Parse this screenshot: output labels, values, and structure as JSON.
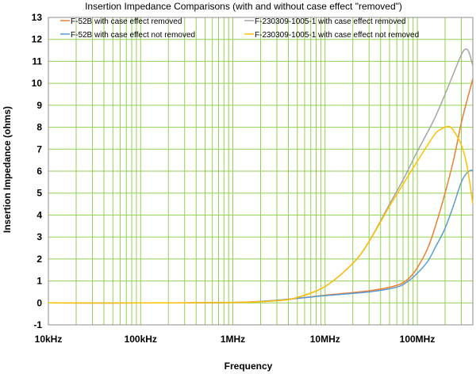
{
  "chart_data": {
    "type": "line",
    "title": "Insertion Impedance Comparisons (with and without case effect \"removed\")",
    "xlabel": "Frequency",
    "ylabel": "Insertion Impedance (ohms)",
    "x_scale": "log",
    "xlim": [
      10000,
      400000000
    ],
    "ylim": [
      -1,
      13
    ],
    "x_ticks": [
      {
        "value": 10000,
        "label": "10kHz"
      },
      {
        "value": 100000,
        "label": "100kHz"
      },
      {
        "value": 1000000,
        "label": "1MHz"
      },
      {
        "value": 10000000,
        "label": "10MHz"
      },
      {
        "value": 100000000,
        "label": "100MHz"
      }
    ],
    "y_ticks": [
      -1,
      0,
      1,
      2,
      3,
      4,
      5,
      6,
      7,
      8,
      9,
      10,
      11,
      12,
      13
    ],
    "grid": true,
    "grid_color": "#92d050",
    "legend_position": "top",
    "series": [
      {
        "name": "F-52B with case effect removed",
        "color": "#ed7d31",
        "points": [
          [
            10000,
            0
          ],
          [
            100000,
            0
          ],
          [
            1000000,
            0.02
          ],
          [
            3000000,
            0.12
          ],
          [
            10000000,
            0.35
          ],
          [
            30000000,
            0.55
          ],
          [
            60000000,
            0.8
          ],
          [
            80000000,
            1.1
          ],
          [
            100000000,
            1.6
          ],
          [
            130000000,
            2.5
          ],
          [
            160000000,
            3.6
          ],
          [
            200000000,
            5.0
          ],
          [
            250000000,
            6.6
          ],
          [
            300000000,
            8.2
          ],
          [
            350000000,
            9.3
          ],
          [
            400000000,
            10.2
          ]
        ]
      },
      {
        "name": "F-52B with case effect not removed",
        "color": "#5b9bd5",
        "points": [
          [
            10000,
            0
          ],
          [
            100000,
            0
          ],
          [
            1000000,
            0.02
          ],
          [
            3000000,
            0.12
          ],
          [
            10000000,
            0.33
          ],
          [
            30000000,
            0.5
          ],
          [
            60000000,
            0.72
          ],
          [
            80000000,
            1.0
          ],
          [
            100000000,
            1.35
          ],
          [
            130000000,
            1.9
          ],
          [
            160000000,
            2.6
          ],
          [
            200000000,
            3.4
          ],
          [
            250000000,
            4.5
          ],
          [
            300000000,
            5.5
          ],
          [
            350000000,
            5.95
          ],
          [
            400000000,
            6.05
          ]
        ]
      },
      {
        "name": "F-230309-1005-1 with case effect removed",
        "color": "#a5a5a5",
        "points": [
          [
            10000,
            0
          ],
          [
            100000,
            0
          ],
          [
            1000000,
            0.02
          ],
          [
            3000000,
            0.1
          ],
          [
            5000000,
            0.25
          ],
          [
            10000000,
            0.75
          ],
          [
            20000000,
            1.8
          ],
          [
            30000000,
            2.8
          ],
          [
            50000000,
            4.5
          ],
          [
            70000000,
            5.6
          ],
          [
            100000000,
            6.9
          ],
          [
            150000000,
            8.3
          ],
          [
            200000000,
            9.5
          ],
          [
            250000000,
            10.5
          ],
          [
            300000000,
            11.3
          ],
          [
            330000000,
            11.55
          ],
          [
            360000000,
            11.45
          ],
          [
            400000000,
            10.8
          ]
        ]
      },
      {
        "name": "F-230309-1005-1 with case effect not removed",
        "color": "#ffc000",
        "points": [
          [
            10000,
            0
          ],
          [
            100000,
            0
          ],
          [
            1000000,
            0.02
          ],
          [
            3000000,
            0.1
          ],
          [
            5000000,
            0.25
          ],
          [
            10000000,
            0.75
          ],
          [
            20000000,
            1.8
          ],
          [
            30000000,
            2.8
          ],
          [
            50000000,
            4.4
          ],
          [
            70000000,
            5.4
          ],
          [
            100000000,
            6.45
          ],
          [
            130000000,
            7.2
          ],
          [
            160000000,
            7.75
          ],
          [
            200000000,
            8.0
          ],
          [
            230000000,
            8.0
          ],
          [
            260000000,
            7.7
          ],
          [
            300000000,
            7.2
          ],
          [
            340000000,
            6.4
          ],
          [
            370000000,
            5.5
          ],
          [
            400000000,
            4.5
          ]
        ]
      }
    ]
  }
}
